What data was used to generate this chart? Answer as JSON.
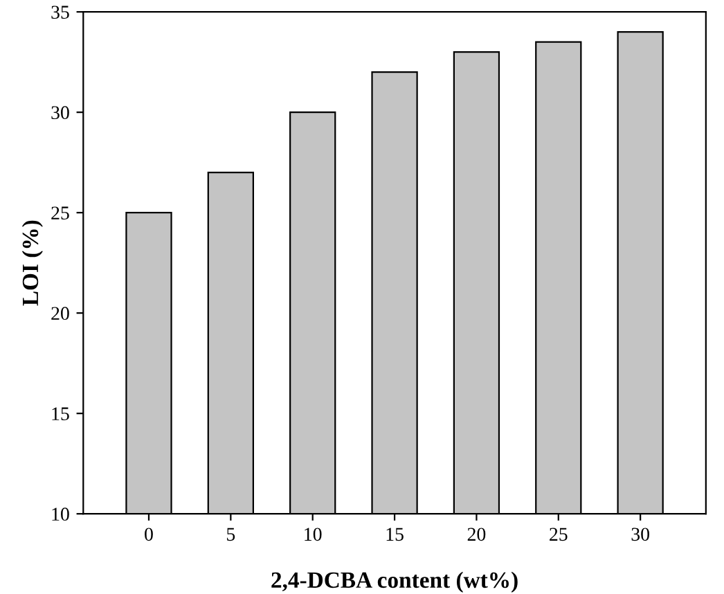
{
  "chart_data": {
    "type": "bar",
    "xlabel": "2,4-DCBA content (wt%)",
    "ylabel": "LOI (%)",
    "categories": [
      "0",
      "5",
      "10",
      "15",
      "20",
      "25",
      "30"
    ],
    "values": [
      25,
      27,
      30,
      32,
      33,
      33.5,
      34
    ],
    "color": "#c4c4c4",
    "ylim": [
      10,
      35
    ],
    "yticks": [
      10,
      15,
      20,
      25,
      30,
      35
    ],
    "grid": false
  }
}
